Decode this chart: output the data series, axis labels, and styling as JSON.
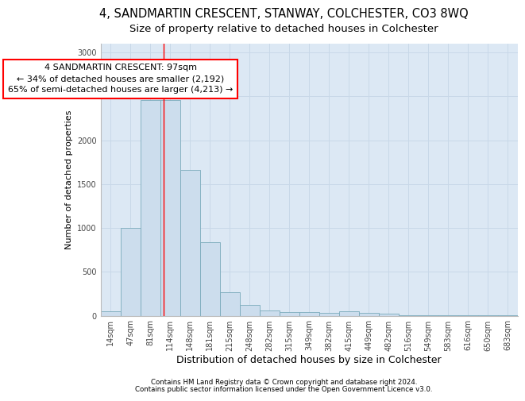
{
  "title1": "4, SANDMARTIN CRESCENT, STANWAY, COLCHESTER, CO3 8WQ",
  "title2": "Size of property relative to detached houses in Colchester",
  "xlabel": "Distribution of detached houses by size in Colchester",
  "ylabel": "Number of detached properties",
  "bar_labels": [
    "14sqm",
    "47sqm",
    "81sqm",
    "114sqm",
    "148sqm",
    "181sqm",
    "215sqm",
    "248sqm",
    "282sqm",
    "315sqm",
    "349sqm",
    "382sqm",
    "415sqm",
    "449sqm",
    "482sqm",
    "516sqm",
    "549sqm",
    "583sqm",
    "616sqm",
    "650sqm",
    "683sqm"
  ],
  "bar_values": [
    50,
    1000,
    2460,
    2460,
    1660,
    840,
    265,
    125,
    55,
    40,
    40,
    35,
    50,
    30,
    20,
    3,
    2,
    1,
    1,
    1,
    1
  ],
  "bar_color": "#ccdded",
  "bar_edge_color": "#7aaabb",
  "grid_color": "#c8d8e8",
  "bg_color": "#dce8f4",
  "red_line_x": 2.67,
  "annotation_line1": "4 SANDMARTIN CRESCENT: 97sqm",
  "annotation_line2": "← 34% of detached houses are smaller (2,192)",
  "annotation_line3": "65% of semi-detached houses are larger (4,213) →",
  "annotation_box_color": "white",
  "annotation_box_edge": "red",
  "ylim": [
    0,
    3100
  ],
  "yticks": [
    0,
    500,
    1000,
    1500,
    2000,
    2500,
    3000
  ],
  "footer1": "Contains HM Land Registry data © Crown copyright and database right 2024.",
  "footer2": "Contains public sector information licensed under the Open Government Licence v3.0.",
  "title1_fontsize": 10.5,
  "title2_fontsize": 9.5,
  "annotation_fontsize": 8,
  "xlabel_fontsize": 9,
  "ylabel_fontsize": 8,
  "tick_fontsize": 7,
  "footer_fontsize": 6.2
}
